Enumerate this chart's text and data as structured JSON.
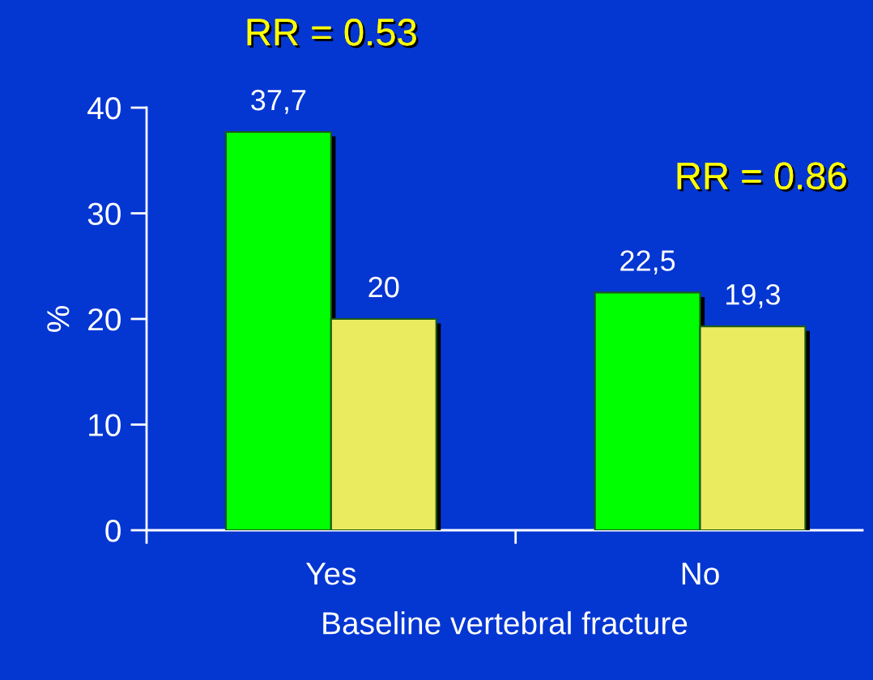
{
  "chart_data": {
    "type": "bar",
    "xlabel": "Baseline vertebral fracture",
    "ylabel": "%",
    "categories": [
      "Yes",
      "No"
    ],
    "series": [
      {
        "color": "#00ff00",
        "values": [
          37.7,
          22.5
        ],
        "value_labels": [
          "37,7",
          "22,5"
        ]
      },
      {
        "color": "#ebeb5f",
        "values": [
          20,
          19.3
        ],
        "value_labels": [
          "20",
          "19,3"
        ]
      }
    ],
    "ylim": [
      0,
      40
    ],
    "yticks": [
      0,
      10,
      20,
      30,
      40
    ],
    "annotations": [
      "RR = 0.53",
      "RR = 0.86"
    ],
    "grid": false,
    "legend": false
  }
}
